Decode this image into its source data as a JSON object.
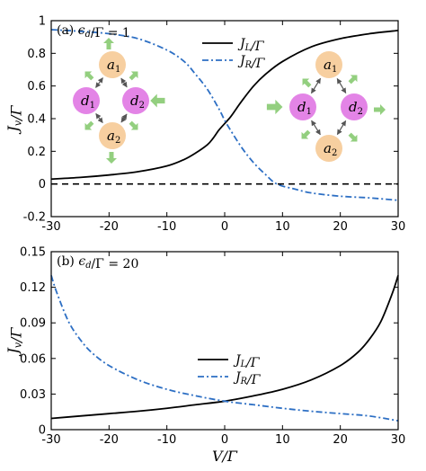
{
  "chart_data": [
    {
      "type": "line",
      "panel_label": "(a) ϵd/Γ = 1",
      "xlabel": "",
      "ylabel": "Jv/Γ",
      "xlim": [
        -30,
        30
      ],
      "ylim": [
        -0.2,
        1.0
      ],
      "xticks": [
        -30,
        -20,
        -10,
        0,
        10,
        20,
        30
      ],
      "xtick_labels": [
        "-30",
        "-20",
        "-10",
        "0",
        "10",
        "20",
        "30"
      ],
      "yticks": [
        -0.2,
        0,
        0.2,
        0.4,
        0.6,
        0.8,
        1.0
      ],
      "ytick_labels": [
        "-0.2",
        "0",
        "0.2",
        "0.4",
        "0.6",
        "0.8",
        "1"
      ],
      "legend_placement": "top-center",
      "series": [
        {
          "name": "JL/Γ",
          "style": "solid",
          "color": "#000000",
          "x": [
            -30,
            -25,
            -20,
            -15,
            -10,
            -7,
            -5,
            -3,
            -2,
            -1,
            0,
            1,
            2,
            3,
            5,
            7,
            10,
            15,
            20,
            25,
            30
          ],
          "y": [
            0.03,
            0.04,
            0.055,
            0.075,
            0.11,
            0.15,
            0.19,
            0.24,
            0.28,
            0.33,
            0.37,
            0.41,
            0.46,
            0.51,
            0.6,
            0.67,
            0.75,
            0.84,
            0.89,
            0.92,
            0.94
          ]
        },
        {
          "name": "JR/Γ",
          "style": "dashdot",
          "color": "#2d6fc4",
          "x": [
            -30,
            -25,
            -20,
            -15,
            -10,
            -7,
            -5,
            -3,
            -1,
            0,
            1,
            3,
            5,
            7,
            9,
            12,
            15,
            20,
            25,
            30
          ],
          "y": [
            0.945,
            0.935,
            0.92,
            0.89,
            0.82,
            0.75,
            0.67,
            0.58,
            0.46,
            0.39,
            0.33,
            0.22,
            0.13,
            0.06,
            0.0,
            -0.03,
            -0.055,
            -0.075,
            -0.085,
            -0.1
          ]
        },
        {
          "name": "",
          "style": "dashed",
          "color": "#000000",
          "x": [
            -30,
            30
          ],
          "y": [
            0,
            0
          ]
        }
      ],
      "legend": [
        "JL/Γ",
        "JR/Γ"
      ]
    },
    {
      "type": "line",
      "panel_label": "(b) ϵd/Γ = 20",
      "xlabel": "V/Γ",
      "ylabel": "Jv/Γ",
      "xlim": [
        -30,
        30
      ],
      "ylim": [
        0,
        0.15
      ],
      "xticks": [
        -30,
        -20,
        -10,
        0,
        10,
        20,
        30
      ],
      "xtick_labels": [
        "-30",
        "-20",
        "-10",
        "0",
        "10",
        "20",
        "30"
      ],
      "yticks": [
        0,
        0.03,
        0.06,
        0.09,
        0.12,
        0.15
      ],
      "ytick_labels": [
        "0",
        "0.03",
        "0.06",
        "0.09",
        "0.12",
        "0.15"
      ],
      "legend_placement": "bottom-center",
      "series": [
        {
          "name": "JL/Γ",
          "style": "solid",
          "color": "#000000",
          "x": [
            -30,
            -25,
            -20,
            -15,
            -10,
            -5,
            0,
            5,
            10,
            15,
            20,
            23,
            25,
            27,
            29,
            30
          ],
          "y": [
            0.0095,
            0.0115,
            0.0135,
            0.0155,
            0.018,
            0.021,
            0.024,
            0.0285,
            0.034,
            0.042,
            0.054,
            0.065,
            0.076,
            0.091,
            0.115,
            0.13
          ]
        },
        {
          "name": "JR/Γ",
          "style": "dashdot",
          "color": "#2d6fc4",
          "x": [
            -30,
            -29,
            -27,
            -25,
            -23,
            -20,
            -15,
            -10,
            -5,
            0,
            5,
            10,
            15,
            20,
            25,
            30
          ],
          "y": [
            0.13,
            0.115,
            0.091,
            0.076,
            0.065,
            0.054,
            0.042,
            0.034,
            0.0285,
            0.024,
            0.021,
            0.018,
            0.0155,
            0.0135,
            0.0115,
            0.0075
          ]
        }
      ],
      "legend": [
        "JL/Γ",
        "JR/Γ"
      ]
    }
  ],
  "colors": {
    "a_node": "#f7cfa0",
    "d_node": "#e384e6",
    "arrow_green": "#93cf7f",
    "link": "#555555"
  },
  "diagrams": [
    {
      "nodes": [
        {
          "id": "a1",
          "label": "a1"
        },
        {
          "id": "d1",
          "label": "d1"
        },
        {
          "id": "d2",
          "label": "d2"
        },
        {
          "id": "a2",
          "label": "a2"
        }
      ]
    },
    {
      "nodes": [
        {
          "id": "a1",
          "label": "a1"
        },
        {
          "id": "d1",
          "label": "d1"
        },
        {
          "id": "d2",
          "label": "d2"
        },
        {
          "id": "a2",
          "label": "a2"
        }
      ]
    }
  ]
}
